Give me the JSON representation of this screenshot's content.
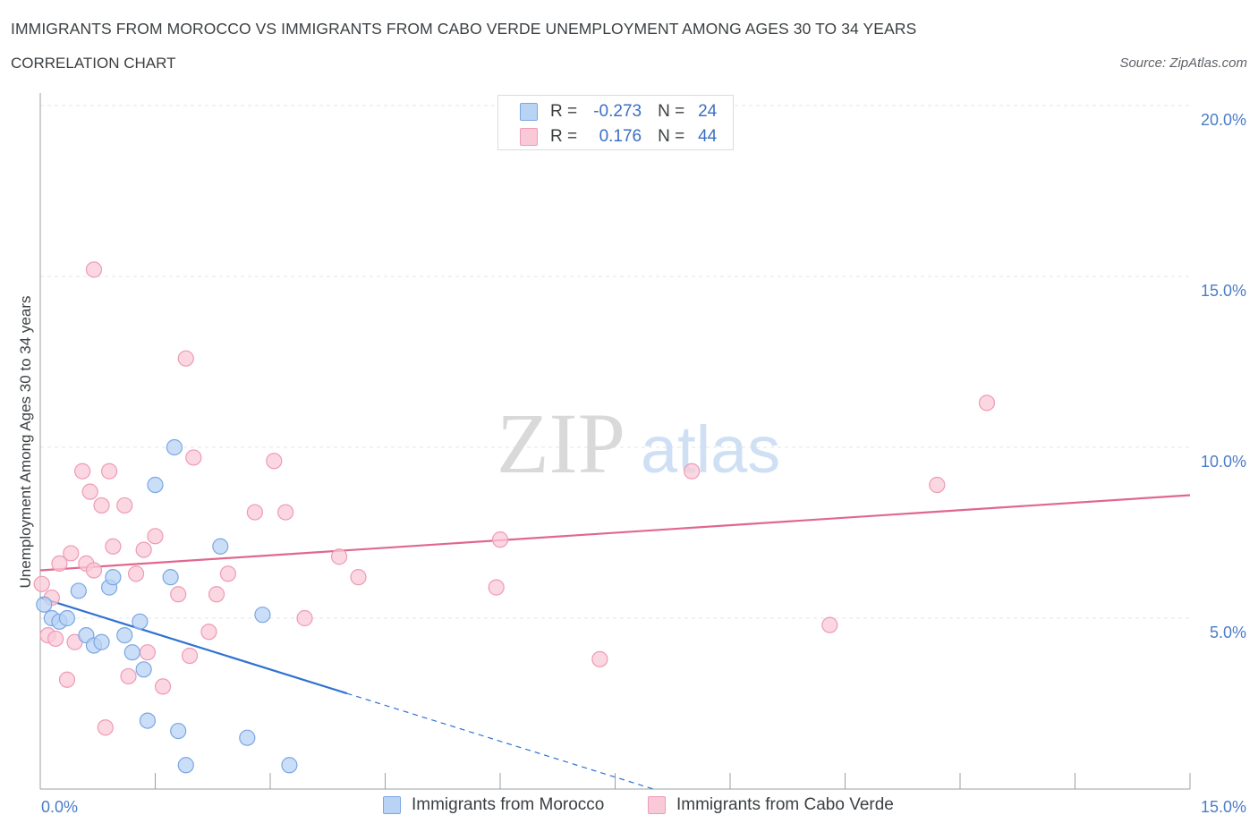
{
  "header": {
    "title": "IMMIGRANTS FROM MOROCCO VS IMMIGRANTS FROM CABO VERDE UNEMPLOYMENT AMONG AGES 30 TO 34 YEARS",
    "subtitle": "CORRELATION CHART",
    "source": "Source: ZipAtlas.com"
  },
  "legend": {
    "rows": [
      {
        "r_label": "R =",
        "r_value": "-0.273",
        "n_label": "N =",
        "n_value": "24"
      },
      {
        "r_label": "R =",
        "r_value": "0.176",
        "n_label": "N =",
        "n_value": "44"
      }
    ]
  },
  "bottom_legend": {
    "series1": "Immigrants from Morocco",
    "series2": "Immigrants from Cabo Verde"
  },
  "watermark": {
    "zip": "ZIP",
    "atlas": "atlas"
  },
  "colors": {
    "morocco_fill": "#b9d3f5",
    "morocco_stroke": "#7aa6e3",
    "morocco_line": "#2f72d1",
    "caboverde_fill": "#f9c9d8",
    "caboverde_stroke": "#ee9ab6",
    "caboverde_line": "#e0678f",
    "axis_text": "#4a7cc9",
    "grid": "#e3e6ea"
  },
  "chart_data": {
    "type": "scatter",
    "title": "IMMIGRANTS FROM MOROCCO VS IMMIGRANTS FROM CABO VERDE UNEMPLOYMENT AMONG AGES 30 TO 34 YEARS",
    "xlabel": "",
    "ylabel": "Unemployment Among Ages 30 to 34 years",
    "xlim": [
      0,
      15
    ],
    "ylim": [
      0,
      20
    ],
    "x_tick_labels": [
      "0.0%",
      "15.0%"
    ],
    "y_ticks": [
      5,
      10,
      15,
      20
    ],
    "y_tick_labels": [
      "5.0%",
      "10.0%",
      "15.0%",
      "20.0%"
    ],
    "grid": true,
    "legend_position": "top-center",
    "series": [
      {
        "name": "Immigrants from Morocco",
        "r": -0.273,
        "n": 24,
        "trend": {
          "x0": 0.0,
          "y0": 5.6,
          "x1": 4.0,
          "y1": 2.8,
          "dashed_to_x": 8.0
        },
        "points": [
          {
            "x": 0.05,
            "y": 5.4
          },
          {
            "x": 0.15,
            "y": 5.0
          },
          {
            "x": 0.25,
            "y": 4.9
          },
          {
            "x": 0.35,
            "y": 5.0
          },
          {
            "x": 0.5,
            "y": 5.8
          },
          {
            "x": 0.6,
            "y": 4.5
          },
          {
            "x": 0.7,
            "y": 4.2
          },
          {
            "x": 0.8,
            "y": 4.3
          },
          {
            "x": 0.9,
            "y": 5.9
          },
          {
            "x": 0.95,
            "y": 6.2
          },
          {
            "x": 1.1,
            "y": 4.5
          },
          {
            "x": 1.2,
            "y": 4.0
          },
          {
            "x": 1.3,
            "y": 4.9
          },
          {
            "x": 1.35,
            "y": 3.5
          },
          {
            "x": 1.4,
            "y": 2.0
          },
          {
            "x": 1.5,
            "y": 8.9
          },
          {
            "x": 1.7,
            "y": 6.2
          },
          {
            "x": 1.8,
            "y": 1.7
          },
          {
            "x": 1.9,
            "y": 0.7
          },
          {
            "x": 1.75,
            "y": 10.0
          },
          {
            "x": 2.35,
            "y": 7.1
          },
          {
            "x": 2.7,
            "y": 1.5
          },
          {
            "x": 2.9,
            "y": 5.1
          },
          {
            "x": 3.25,
            "y": 0.7
          }
        ]
      },
      {
        "name": "Immigrants from Cabo Verde",
        "r": 0.176,
        "n": 44,
        "trend": {
          "x0": 0.0,
          "y0": 6.4,
          "x1": 15.0,
          "y1": 8.6
        },
        "points": [
          {
            "x": 0.02,
            "y": 6.0
          },
          {
            "x": 0.1,
            "y": 4.5
          },
          {
            "x": 0.15,
            "y": 5.6
          },
          {
            "x": 0.2,
            "y": 4.4
          },
          {
            "x": 0.25,
            "y": 6.6
          },
          {
            "x": 0.35,
            "y": 3.2
          },
          {
            "x": 0.4,
            "y": 6.9
          },
          {
            "x": 0.45,
            "y": 4.3
          },
          {
            "x": 0.55,
            "y": 9.3
          },
          {
            "x": 0.6,
            "y": 6.6
          },
          {
            "x": 0.65,
            "y": 8.7
          },
          {
            "x": 0.7,
            "y": 6.4
          },
          {
            "x": 0.7,
            "y": 15.2
          },
          {
            "x": 0.8,
            "y": 8.3
          },
          {
            "x": 0.85,
            "y": 1.8
          },
          {
            "x": 0.9,
            "y": 9.3
          },
          {
            "x": 0.95,
            "y": 7.1
          },
          {
            "x": 1.1,
            "y": 8.3
          },
          {
            "x": 1.15,
            "y": 3.3
          },
          {
            "x": 1.25,
            "y": 6.3
          },
          {
            "x": 1.35,
            "y": 7.0
          },
          {
            "x": 1.4,
            "y": 4.0
          },
          {
            "x": 1.5,
            "y": 7.4
          },
          {
            "x": 1.6,
            "y": 3.0
          },
          {
            "x": 1.8,
            "y": 5.7
          },
          {
            "x": 1.95,
            "y": 3.9
          },
          {
            "x": 2.0,
            "y": 9.7
          },
          {
            "x": 2.2,
            "y": 4.6
          },
          {
            "x": 2.3,
            "y": 5.7
          },
          {
            "x": 2.45,
            "y": 6.3
          },
          {
            "x": 2.8,
            "y": 8.1
          },
          {
            "x": 3.05,
            "y": 9.6
          },
          {
            "x": 3.2,
            "y": 8.1
          },
          {
            "x": 3.45,
            "y": 5.0
          },
          {
            "x": 3.9,
            "y": 6.8
          },
          {
            "x": 4.15,
            "y": 6.2
          },
          {
            "x": 1.9,
            "y": 12.6
          },
          {
            "x": 6.0,
            "y": 7.3
          },
          {
            "x": 5.95,
            "y": 5.9
          },
          {
            "x": 7.3,
            "y": 3.8
          },
          {
            "x": 8.5,
            "y": 9.3
          },
          {
            "x": 10.3,
            "y": 4.8
          },
          {
            "x": 11.7,
            "y": 8.9
          },
          {
            "x": 12.35,
            "y": 11.3
          }
        ]
      }
    ]
  }
}
